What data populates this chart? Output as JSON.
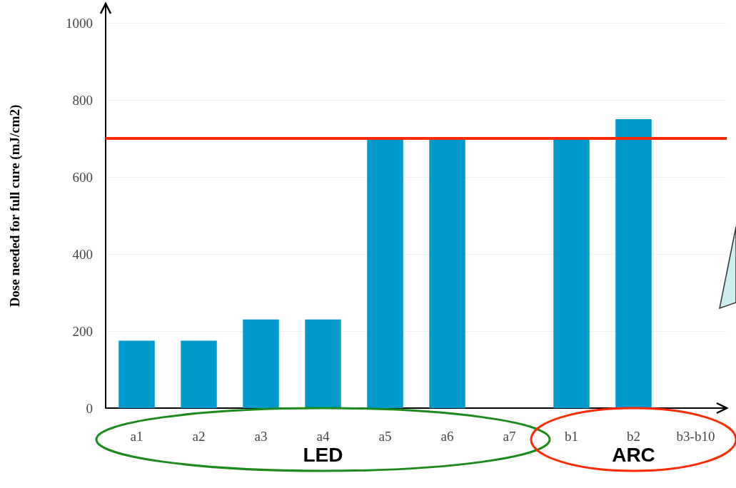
{
  "chart_data": {
    "type": "bar",
    "ylabel": "Dose needed for full cure (mJ/cm2)",
    "categories": [
      "a1",
      "a2",
      "a3",
      "a4",
      "a5",
      "a6",
      "a7",
      "b1",
      "b2",
      "b3-b10"
    ],
    "values": [
      175,
      175,
      230,
      230,
      700,
      700,
      null,
      700,
      750,
      null
    ],
    "color": "#0099cc",
    "ylim": [
      0,
      1050
    ],
    "yticks": [
      0,
      200,
      400,
      600,
      800,
      1000
    ],
    "grid": "y",
    "ref_lines": [
      {
        "axis": "y",
        "value": 700,
        "label": null,
        "color": "#ff2a00"
      }
    ],
    "annotations": [
      "LED",
      "ARC"
    ]
  }
}
